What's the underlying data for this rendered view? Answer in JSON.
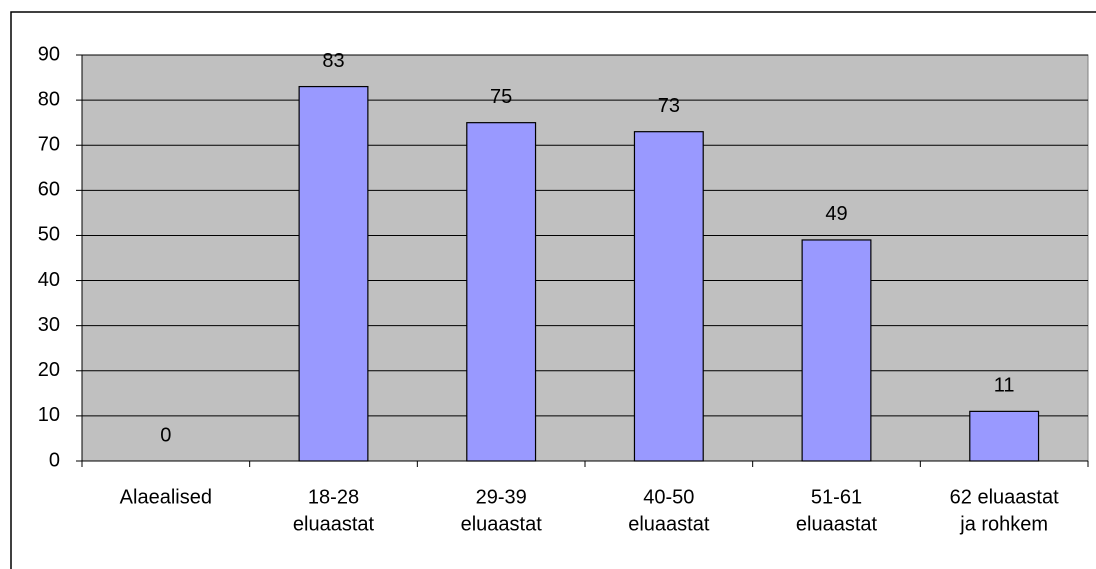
{
  "chart_data": {
    "type": "bar",
    "categories": [
      [
        "Alaealised"
      ],
      [
        "18-28",
        "eluaastat"
      ],
      [
        "29-39",
        "eluaastat"
      ],
      [
        "40-50",
        "eluaastat"
      ],
      [
        "51-61",
        "eluaastat"
      ],
      [
        "62 eluaastat",
        "ja rohkem"
      ]
    ],
    "values": [
      0,
      83,
      75,
      73,
      49,
      11
    ],
    "color": "#9999ff",
    "ylim": [
      0,
      90
    ],
    "yticks": [
      0,
      10,
      20,
      30,
      40,
      50,
      60,
      70,
      80,
      90
    ],
    "grid": true
  }
}
